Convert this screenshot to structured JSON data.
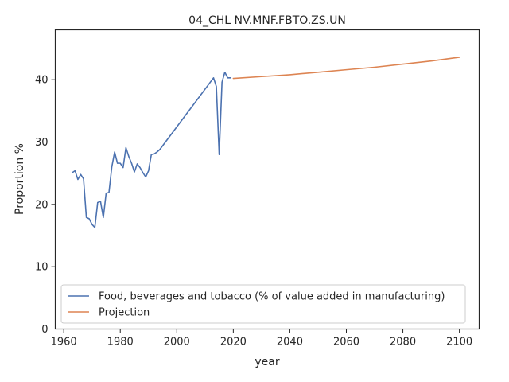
{
  "chart_data": {
    "type": "line",
    "title": "04_CHL NV.MNF.FBTO.ZS.UN",
    "xlabel": "year",
    "ylabel": "Proportion %",
    "xlim": [
      1957,
      2107
    ],
    "ylim": [
      0,
      48
    ],
    "xticks": [
      1960,
      1980,
      2000,
      2020,
      2040,
      2060,
      2080,
      2100
    ],
    "yticks": [
      0,
      10,
      20,
      30,
      40
    ],
    "grid": false,
    "legend_position": "lower-left",
    "series": [
      {
        "name": "Food, beverages and tobacco (% of value added in manufacturing)",
        "color": "#4c72b0",
        "x": [
          1963,
          1964,
          1965,
          1966,
          1967,
          1968,
          1969,
          1970,
          1971,
          1972,
          1973,
          1974,
          1975,
          1976,
          1977,
          1978,
          1979,
          1980,
          1981,
          1982,
          1983,
          1984,
          1985,
          1986,
          1987,
          1988,
          1989,
          1990,
          1991,
          1992,
          1993,
          1994,
          2013,
          2014,
          2015,
          2016,
          2017,
          2018,
          2019
        ],
        "y": [
          25.1,
          25.4,
          24.0,
          24.8,
          24.1,
          17.9,
          17.7,
          16.8,
          16.3,
          20.3,
          20.5,
          17.9,
          21.8,
          21.9,
          26.0,
          28.4,
          26.6,
          26.6,
          25.9,
          29.1,
          27.7,
          26.6,
          25.2,
          26.5,
          25.9,
          25.1,
          24.4,
          25.4,
          28.0,
          28.1,
          28.4,
          28.8,
          40.3,
          38.9,
          28.0,
          39.6,
          41.2,
          40.3,
          40.3
        ]
      },
      {
        "name": "Projection",
        "color": "#dd8452",
        "x": [
          2020,
          2030,
          2040,
          2050,
          2060,
          2070,
          2080,
          2090,
          2100
        ],
        "y": [
          40.2,
          40.5,
          40.8,
          41.2,
          41.6,
          42.0,
          42.5,
          43.0,
          43.6
        ]
      }
    ]
  }
}
